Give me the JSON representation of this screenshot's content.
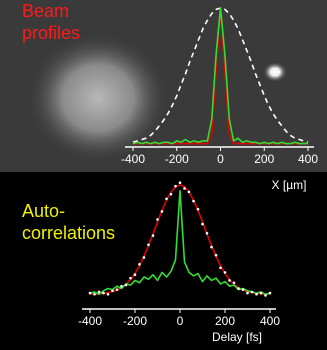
{
  "chart_data": [
    {
      "type": "line",
      "title_lines": [
        "Beam",
        "profiles"
      ],
      "title_color": "#ff1a1a",
      "xlabel": "X [µm]",
      "xlim": [
        -400,
        400
      ],
      "xticks": [
        -400,
        -200,
        0,
        200,
        400
      ],
      "ylim": [
        0,
        1
      ],
      "x": [
        -400,
        -380,
        -360,
        -340,
        -320,
        -300,
        -280,
        -260,
        -240,
        -220,
        -200,
        -180,
        -160,
        -140,
        -120,
        -100,
        -80,
        -60,
        -40,
        -20,
        0,
        20,
        40,
        60,
        80,
        100,
        120,
        140,
        160,
        180,
        200,
        220,
        240,
        260,
        280,
        300,
        320,
        340,
        360,
        380,
        400
      ],
      "series": [
        {
          "color": "#ffffff",
          "dash": true,
          "values": [
            0.02,
            0.03,
            0.04,
            0.05,
            0.07,
            0.1,
            0.14,
            0.18,
            0.23,
            0.29,
            0.36,
            0.44,
            0.52,
            0.61,
            0.69,
            0.77,
            0.85,
            0.91,
            0.96,
            0.99,
            1,
            0.99,
            0.96,
            0.91,
            0.85,
            0.77,
            0.69,
            0.61,
            0.52,
            0.44,
            0.36,
            0.29,
            0.23,
            0.18,
            0.14,
            0.1,
            0.07,
            0.05,
            0.04,
            0.03,
            0.02
          ]
        },
        {
          "color": "#e00000",
          "values": [
            0.01,
            0.01,
            0.01,
            0.01,
            0.01,
            0.01,
            0.01,
            0.01,
            0.01,
            0.01,
            0.01,
            0.01,
            0.01,
            0.01,
            0.01,
            0.01,
            0.01,
            0.01,
            0.08,
            0.54,
            1,
            0.54,
            0.08,
            0.01,
            0.01,
            0.01,
            0.01,
            0.01,
            0.01,
            0.01,
            0.01,
            0.01,
            0.01,
            0.01,
            0.01,
            0.01,
            0.01,
            0.01,
            0.01,
            0.01,
            0.01
          ]
        },
        {
          "color": "#33dd33",
          "values": [
            0.01,
            0.02,
            0.01,
            0.02,
            0.01,
            0.02,
            0.01,
            0.02,
            0.02,
            0.01,
            0.03,
            0.02,
            0.04,
            0.02,
            0.03,
            0.02,
            0.03,
            0.03,
            0.19,
            0.66,
            1,
            0.66,
            0.19,
            0.03,
            0.05,
            0.02,
            0.03,
            0.02,
            0.02,
            0.01,
            0.02,
            0.01,
            0.02,
            0.01,
            0.02,
            0.01,
            0.01,
            0.02,
            0.01,
            0.01,
            0.01
          ]
        }
      ]
    },
    {
      "type": "line",
      "title_lines": [
        "Auto-",
        "correlations"
      ],
      "title_color": "#f0f000",
      "xlabel": "Delay [fs]",
      "xlim": [
        -400,
        400
      ],
      "xticks": [
        -400,
        -200,
        0,
        200,
        400
      ],
      "ylim": [
        0,
        1
      ],
      "x": [
        -400,
        -380,
        -360,
        -340,
        -320,
        -300,
        -280,
        -260,
        -240,
        -220,
        -200,
        -180,
        -160,
        -140,
        -120,
        -100,
        -80,
        -60,
        -40,
        -20,
        0,
        20,
        40,
        60,
        80,
        100,
        120,
        140,
        160,
        180,
        200,
        220,
        240,
        260,
        280,
        300,
        320,
        340,
        360,
        380,
        400
      ],
      "series": [
        {
          "color": "#e00000",
          "values": [
            0.052,
            0.053,
            0.055,
            0.058,
            0.064,
            0.073,
            0.087,
            0.108,
            0.138,
            0.178,
            0.231,
            0.299,
            0.381,
            0.473,
            0.573,
            0.679,
            0.78,
            0.869,
            0.939,
            0.984,
            1,
            0.984,
            0.939,
            0.869,
            0.78,
            0.679,
            0.573,
            0.473,
            0.381,
            0.299,
            0.231,
            0.178,
            0.138,
            0.108,
            0.087,
            0.073,
            0.064,
            0.058,
            0.055,
            0.053,
            0.052
          ]
        },
        {
          "color": "#33dd33",
          "values": [
            0.06,
            0.07,
            0.05,
            0.08,
            0.1,
            0.09,
            0.12,
            0.1,
            0.14,
            0.13,
            0.17,
            0.15,
            0.2,
            0.18,
            0.22,
            0.17,
            0.24,
            0.2,
            0.25,
            0.35,
            0.95,
            0.33,
            0.24,
            0.21,
            0.23,
            0.16,
            0.21,
            0.17,
            0.19,
            0.14,
            0.16,
            0.12,
            0.13,
            0.09,
            0.1,
            0.08,
            0.07,
            0.06,
            0.07,
            0.05,
            0.06
          ]
        },
        {
          "color": "#ffffff",
          "markers_only": true,
          "values": [
            0.06,
            0.05,
            0.07,
            0.06,
            0.05,
            0.08,
            0.09,
            0.12,
            0.13,
            0.19,
            0.22,
            0.31,
            0.37,
            0.48,
            0.56,
            0.7,
            0.77,
            0.88,
            0.92,
            0.99,
            1.02,
            0.97,
            0.94,
            0.86,
            0.79,
            0.66,
            0.58,
            0.46,
            0.39,
            0.28,
            0.24,
            0.17,
            0.15,
            0.1,
            0.09,
            0.06,
            0.07,
            0.05,
            0.06,
            0.04,
            0.06
          ]
        }
      ]
    }
  ]
}
